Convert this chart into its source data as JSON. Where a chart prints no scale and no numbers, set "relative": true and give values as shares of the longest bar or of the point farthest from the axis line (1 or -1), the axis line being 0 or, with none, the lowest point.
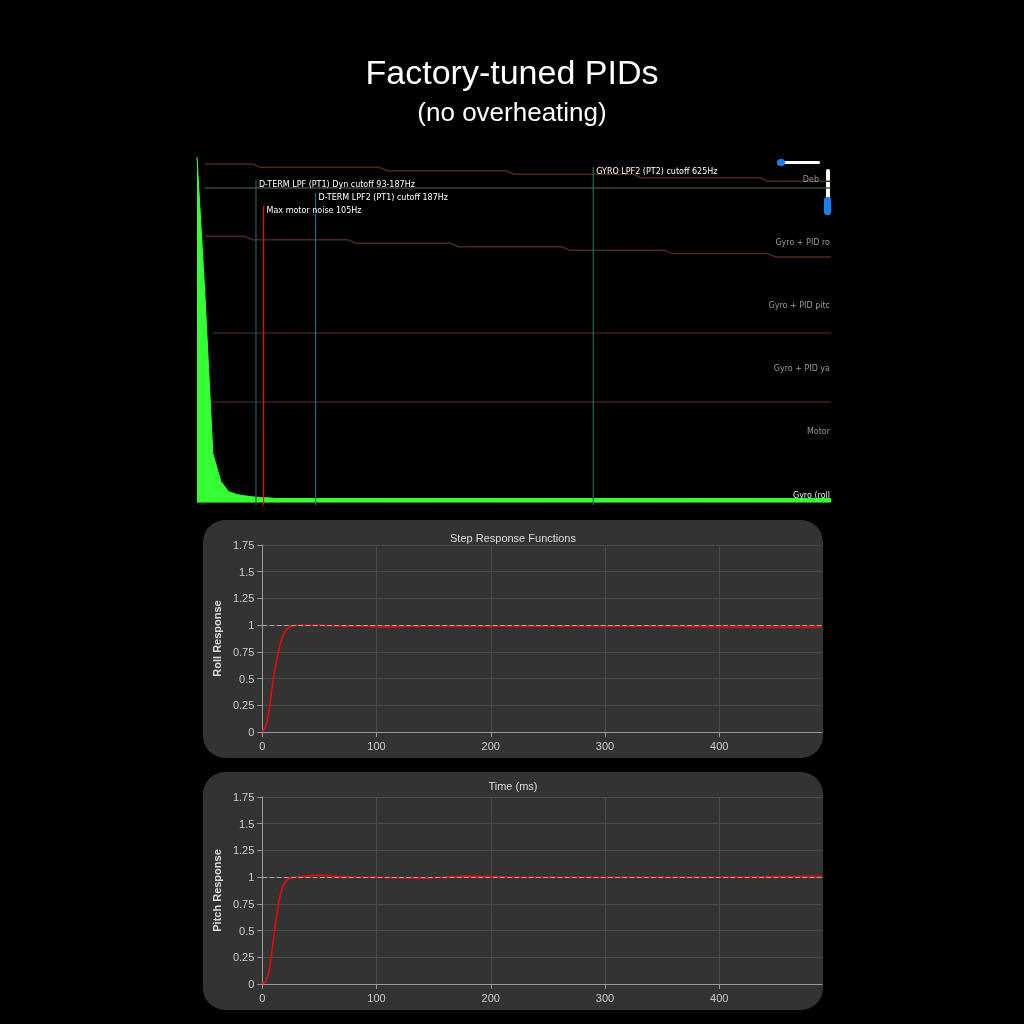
{
  "chart_data": [
    {
      "type": "area",
      "title": "Factory-tuned PIDs",
      "subtitle": "(no overheating)",
      "relative": true,
      "categories": [
        null,
        null,
        null,
        null,
        null,
        null,
        null,
        null,
        null,
        null,
        null,
        null,
        null,
        null,
        null,
        null,
        null,
        null,
        null,
        null,
        null,
        null,
        null,
        null,
        null,
        null,
        null,
        null,
        null,
        null,
        null,
        null,
        null,
        null,
        null,
        null,
        null,
        null,
        null,
        null,
        null,
        null,
        null,
        null,
        null,
        null,
        null,
        null,
        null,
        null,
        null,
        null,
        null,
        null,
        null,
        null,
        null,
        null,
        null,
        null,
        null,
        null,
        null,
        null,
        null,
        null,
        null,
        null,
        null,
        null,
        null,
        null,
        null,
        null,
        null,
        null,
        null,
        null,
        null,
        null,
        null
      ],
      "series": [
        {
          "color": "#33ff33",
          "values": [
            1,
            0.6,
            0.14,
            0.06,
            0.03,
            0.022,
            0.018,
            0.015,
            0.013,
            0.012,
            0.01,
            0.01,
            0.01,
            0.01,
            0.01,
            0.01,
            0.01,
            0.01,
            0.01,
            0.01,
            0.01,
            0.01,
            0.01,
            0.01,
            0.01,
            0.01,
            0.01,
            0.01,
            0.01,
            0.01,
            0.01,
            0.01,
            0.01,
            0.01,
            0.01,
            0.01,
            0.01,
            0.01,
            0.01,
            0.01,
            0.01,
            0.01,
            0.01,
            0.01,
            0.01,
            0.01,
            0.01,
            0.01,
            0.01,
            0.01,
            0.01,
            0.01,
            0.01,
            0.01,
            0.01,
            0.01,
            0.01,
            0.01,
            0.01,
            0.01,
            0.01,
            0.01,
            0.01,
            0.01,
            0.01,
            0.01,
            0.01,
            0.01,
            0.01,
            0.01,
            0.01,
            0.01,
            0.01,
            0.01,
            0.01,
            0.01,
            0.01,
            0.01,
            0.01,
            0.01,
            0.01
          ]
        },
        {
          "type": "line",
          "color": "#4a2a1a",
          "values": [
            null,
            0.98,
            0.98,
            0.98,
            0.98,
            0.98,
            0.98,
            0.98,
            0.97,
            0.97,
            0.97,
            0.97,
            0.97,
            0.97,
            0.97,
            0.97,
            0.97,
            0.97,
            0.97,
            0.97,
            0.97,
            0.97,
            0.97,
            0.97,
            0.96,
            0.96,
            0.96,
            0.96,
            0.96,
            0.96,
            0.96,
            0.96,
            0.96,
            0.96,
            0.96,
            0.96,
            0.96,
            0.96,
            0.96,
            0.96,
            0.95,
            0.95,
            0.95,
            0.95,
            0.95,
            0.95,
            0.95,
            0.95,
            0.95,
            0.95,
            0.95,
            0.95,
            0.95,
            0.95,
            0.95,
            0.95,
            0.94,
            0.94,
            0.94,
            0.94,
            0.94,
            0.94,
            0.94,
            0.94,
            0.94,
            0.94,
            0.94,
            0.94,
            0.94,
            0.94,
            0.94,
            0.94,
            0.93,
            0.93,
            0.93,
            0.93,
            0.93,
            0.93,
            0.93,
            0.93,
            0.93
          ]
        },
        {
          "type": "line",
          "color": "#3a4a3a",
          "values": [
            null,
            0.91,
            0.91,
            0.91,
            0.91,
            0.91,
            0.91,
            0.91,
            0.91,
            0.91,
            0.91,
            0.91,
            0.91,
            0.91,
            0.91,
            0.91,
            0.91,
            0.91,
            0.91,
            0.91,
            0.91,
            0.91,
            0.91,
            0.91,
            0.91,
            0.91,
            0.91,
            0.91,
            0.91,
            0.91,
            0.91,
            0.91,
            0.91,
            0.91,
            0.91,
            0.91,
            0.91,
            0.91,
            0.91,
            0.91,
            0.91,
            0.91,
            0.91,
            0.91,
            0.91,
            0.91,
            0.91,
            0.91,
            0.91,
            0.91,
            0.91,
            0.91,
            0.91,
            0.91,
            0.91,
            0.91,
            0.91,
            0.91,
            0.91,
            0.91,
            0.91,
            0.91,
            0.91,
            0.91,
            0.91,
            0.91,
            0.91,
            0.91,
            0.91,
            0.91,
            0.91,
            0.91,
            0.91,
            0.91,
            0.91,
            0.91,
            0.91,
            0.91,
            0.91,
            0.91,
            0.91
          ]
        },
        {
          "type": "line",
          "color": "#4a2a1a",
          "values": [
            null,
            0.77,
            0.77,
            0.77,
            0.77,
            0.77,
            0.77,
            0.76,
            0.76,
            0.76,
            0.76,
            0.76,
            0.76,
            0.76,
            0.76,
            0.76,
            0.76,
            0.76,
            0.76,
            0.76,
            0.75,
            0.75,
            0.75,
            0.75,
            0.75,
            0.75,
            0.75,
            0.75,
            0.75,
            0.75,
            0.75,
            0.75,
            0.75,
            0.74,
            0.74,
            0.74,
            0.74,
            0.74,
            0.74,
            0.74,
            0.74,
            0.74,
            0.74,
            0.74,
            0.74,
            0.74,
            0.74,
            0.73,
            0.73,
            0.73,
            0.73,
            0.73,
            0.73,
            0.73,
            0.73,
            0.73,
            0.73,
            0.73,
            0.73,
            0.73,
            0.72,
            0.72,
            0.72,
            0.72,
            0.72,
            0.72,
            0.72,
            0.72,
            0.72,
            0.72,
            0.72,
            0.72,
            0.72,
            0.71,
            0.71,
            0.71,
            0.71,
            0.71,
            0.71,
            0.71,
            0.71
          ]
        },
        {
          "type": "line",
          "color": "#3a2418",
          "values": [
            null,
            null,
            0.49,
            0.49,
            0.49,
            0.49,
            0.49,
            0.49,
            0.49,
            0.49,
            0.49,
            0.49,
            0.49,
            0.49,
            0.49,
            0.49,
            0.49,
            0.49,
            0.49,
            0.49,
            0.49,
            0.49,
            0.49,
            0.49,
            0.49,
            0.49,
            0.49,
            0.49,
            0.49,
            0.49,
            0.49,
            0.49,
            0.49,
            0.49,
            0.49,
            0.49,
            0.49,
            0.49,
            0.49,
            0.49,
            0.49,
            0.49,
            0.49,
            0.49,
            0.49,
            0.49,
            0.49,
            0.49,
            0.49,
            0.49,
            0.49,
            0.49,
            0.49,
            0.49,
            0.49,
            0.49,
            0.49,
            0.49,
            0.49,
            0.49,
            0.49,
            0.49,
            0.49,
            0.49,
            0.49,
            0.49,
            0.49,
            0.49,
            0.49,
            0.49,
            0.49,
            0.49,
            0.49,
            0.49,
            0.49,
            0.49,
            0.49,
            0.49,
            0.49,
            0.49,
            0.49
          ]
        },
        {
          "type": "line",
          "color": "#3a2418",
          "values": [
            null,
            null,
            0.29,
            0.29,
            0.29,
            0.29,
            0.29,
            0.29,
            0.29,
            0.29,
            0.29,
            0.29,
            0.29,
            0.29,
            0.29,
            0.29,
            0.29,
            0.29,
            0.29,
            0.29,
            0.29,
            0.29,
            0.29,
            0.29,
            0.29,
            0.29,
            0.29,
            0.29,
            0.29,
            0.29,
            0.29,
            0.29,
            0.29,
            0.29,
            0.29,
            0.29,
            0.29,
            0.29,
            0.29,
            0.29,
            0.29,
            0.29,
            0.29,
            0.29,
            0.29,
            0.29,
            0.29,
            0.29,
            0.29,
            0.29,
            0.29,
            0.29,
            0.29,
            0.29,
            0.29,
            0.29,
            0.29,
            0.29,
            0.29,
            0.29,
            0.29,
            0.29,
            0.29,
            0.29,
            0.29,
            0.29,
            0.29,
            0.29,
            0.29,
            0.29,
            0.29,
            0.29,
            0.29,
            0.29,
            0.29,
            0.29,
            0.29,
            0.29,
            0.29,
            0.29,
            0.29
          ]
        }
      ],
      "annotations": [
        "GYRO LPF2 (PT2) cutoff 625Hz",
        "D-TERM LPF (PT1) Dyn cutoff 93-187Hz",
        "D-TERM LPF2 (PT1) cutoff 187Hz",
        "Max motor noise 105Hz",
        "Deb",
        "Gyro + PID ro",
        "Gyro + PID pitc",
        "Gyro + PID ya",
        "Motor",
        "Gyro (roll"
      ]
    },
    {
      "type": "line",
      "title": "Step Response Functions",
      "ylabel": "Roll Response",
      "marker": "none",
      "grid": true,
      "xlim": [
        0,
        490
      ],
      "xticks": [
        0,
        100,
        200,
        300,
        400
      ],
      "ylim": [
        0,
        1.75
      ],
      "yticks": [
        0,
        0.25,
        0.5,
        0.75,
        1,
        1.25,
        1.5,
        1.75
      ],
      "x": [
        0,
        3,
        6,
        9,
        12,
        15,
        18,
        21,
        25,
        30,
        50,
        70,
        90,
        105,
        130,
        170,
        200,
        250,
        300,
        350,
        410,
        450,
        490
      ],
      "series": [
        {
          "color": "#ff0000",
          "values": [
            0,
            0.05,
            0.2,
            0.45,
            0.65,
            0.8,
            0.9,
            0.96,
            0.99,
            1.0,
            1.0,
            0.99,
            0.99,
            0.98,
            0.99,
            0.99,
            0.99,
            0.99,
            0.99,
            0.99,
            0.98,
            0.98,
            0.98
          ]
        }
      ],
      "ref_lines": [
        {
          "axis": "y",
          "value": 1,
          "color": "#aaaaaa",
          "line_style": "dashed"
        }
      ]
    },
    {
      "type": "line",
      "title": "Time (ms)",
      "ylabel": "Pitch Response",
      "marker": "none",
      "grid": true,
      "xlim": [
        0,
        490
      ],
      "xticks": [
        0,
        100,
        200,
        300,
        400
      ],
      "ylim": [
        0,
        1.75
      ],
      "yticks": [
        0,
        0.25,
        0.5,
        0.75,
        1,
        1.25,
        1.5,
        1.75
      ],
      "x": [
        0,
        3,
        6,
        9,
        12,
        15,
        18,
        22,
        27,
        50,
        60,
        80,
        100,
        140,
        180,
        220,
        300,
        400,
        490
      ],
      "series": [
        {
          "color": "#ff0000",
          "values": [
            0,
            0.02,
            0.12,
            0.35,
            0.6,
            0.8,
            0.92,
            0.98,
            1.0,
            1.02,
            1.01,
            1.0,
            1.0,
            0.99,
            1.01,
            1.0,
            1.0,
            1.0,
            1.01
          ]
        }
      ],
      "ref_lines": [
        {
          "axis": "y",
          "value": 1,
          "color": "#aaaaaa",
          "line_style": "dashed"
        }
      ]
    }
  ]
}
